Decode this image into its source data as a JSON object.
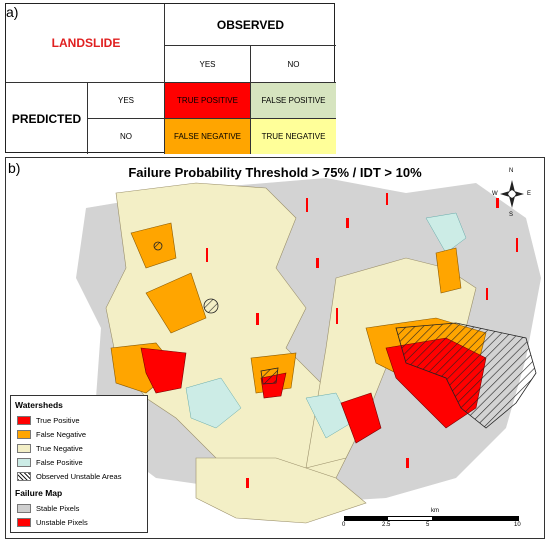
{
  "panel_a": {
    "label": "a)",
    "landslide": "LANDSLIDE",
    "observed": "OBSERVED",
    "yes": "YES",
    "no": "NO",
    "predicted": "PREDICTED",
    "row_yes": "YES",
    "row_no": "NO",
    "tp": "TRUE POSITIVE",
    "fp": "FALSE POSITIVE",
    "fn": "FALSE NEGATIVE",
    "tn": "TRUE NEGATIVE",
    "colors": {
      "tp": "#ff0000",
      "fp": "#d6e4bf",
      "fn": "#ffa500",
      "tn": "#ffff99",
      "landslide": "#e02020"
    }
  },
  "panel_b": {
    "label": "b)",
    "title": "Failure Probability Threshold > 75% / IDT > 10%",
    "compass": {
      "n": "N",
      "s": "S",
      "e": "E",
      "w": "W"
    },
    "legend": {
      "watersheds_header": "Watersheds",
      "items": [
        {
          "label": "True Positive",
          "color": "#ff0000"
        },
        {
          "label": "False Negative",
          "color": "#ffa500"
        },
        {
          "label": "True Negative",
          "color": "#f3efc6"
        },
        {
          "label": "False Positive",
          "color": "#ccece6"
        },
        {
          "label": "Observed Unstable Areas",
          "color": "hatch"
        }
      ],
      "failure_header": "Failure Map",
      "failure_items": [
        {
          "label": "Stable Pixels",
          "color": "#cfcfcf"
        },
        {
          "label": "Unstable Pixels",
          "color": "#ff0000"
        }
      ]
    },
    "scale": {
      "unit": "km",
      "ticks": [
        "0",
        "2.5",
        "5",
        "10"
      ]
    }
  }
}
